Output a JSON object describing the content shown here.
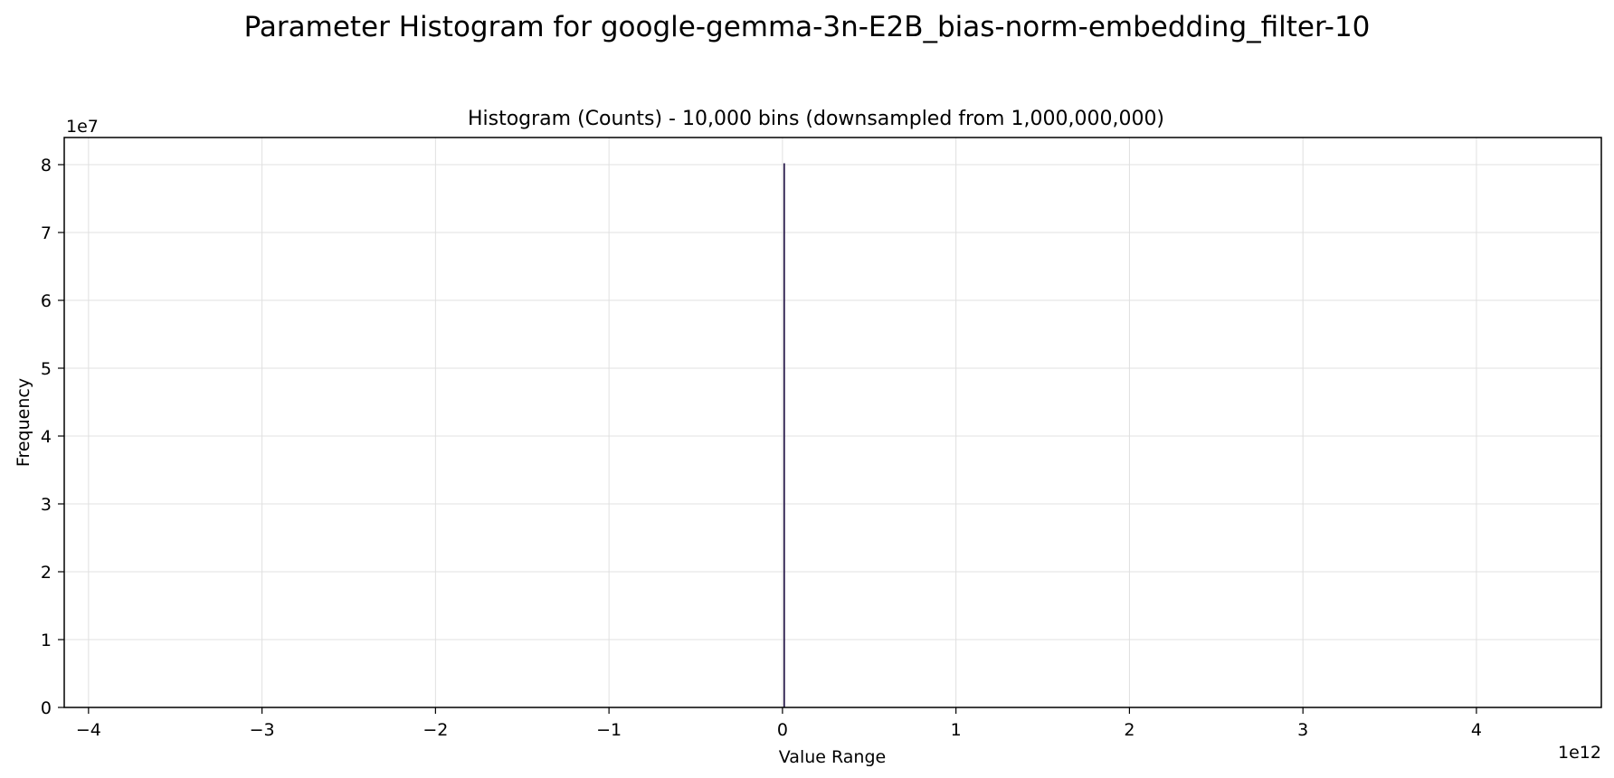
{
  "figure": {
    "suptitle": "Parameter Histogram for google-gemma-3n-E2B_bias-norm-embedding_filter-10"
  },
  "chart_data": {
    "type": "bar",
    "title": "Histogram (Counts) - 10,000 bins (downsampled from 1,000,000,000)",
    "xlabel": "Value Range",
    "ylabel": "Frequency",
    "x_offset_label": "1e12",
    "y_offset_label": "1e7",
    "xlim": [
      -4.14,
      4.72
    ],
    "ylim": [
      0,
      8.4
    ],
    "xticks": [
      -4,
      -3,
      -2,
      -1,
      0,
      1,
      2,
      3,
      4
    ],
    "xtick_labels": [
      "−4",
      "−3",
      "−2",
      "−1",
      "0",
      "1",
      "2",
      "3",
      "4"
    ],
    "yticks": [
      0,
      1,
      2,
      3,
      4,
      5,
      6,
      7,
      8
    ],
    "ytick_labels": [
      "0",
      "1",
      "2",
      "3",
      "4",
      "5",
      "6",
      "7",
      "8"
    ],
    "grid": true,
    "bars": [
      {
        "x": 0.01,
        "height": 8.02
      }
    ],
    "colors": {
      "bar": "#2d1f4f",
      "grid": "#e0e0e0",
      "axis": "#000000"
    }
  }
}
